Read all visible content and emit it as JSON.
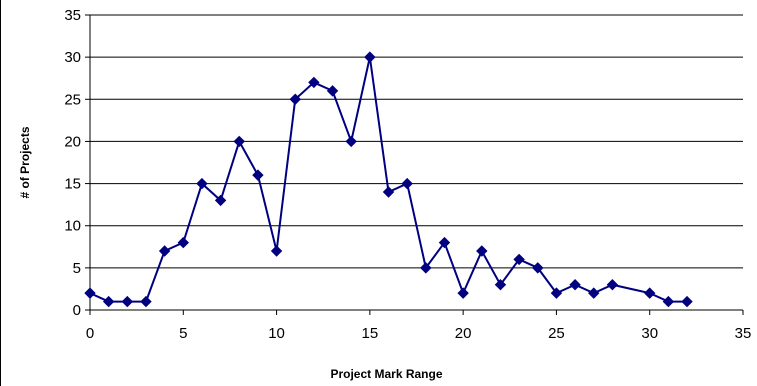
{
  "chart_data": {
    "type": "scatter",
    "title": "",
    "xlabel": "Project Mark Range",
    "ylabel": "# of Projects",
    "xlim": [
      0,
      35
    ],
    "ylim": [
      0,
      35
    ],
    "xticks": [
      0,
      5,
      10,
      15,
      20,
      25,
      30,
      35
    ],
    "yticks": [
      0,
      5,
      10,
      15,
      20,
      25,
      30,
      35
    ],
    "grid": "horizontal",
    "legend": "none",
    "series": [
      {
        "color": "#000080",
        "marker": "diamond",
        "lines": true,
        "x": [
          0,
          1,
          2,
          3,
          4,
          5,
          6,
          7,
          8,
          9,
          10,
          11,
          12,
          13,
          14,
          15,
          16,
          17,
          18,
          19,
          20,
          21,
          22,
          23,
          24,
          25,
          26,
          27,
          28,
          30,
          31,
          32
        ],
        "y": [
          2,
          1,
          1,
          1,
          7,
          8,
          15,
          13,
          20,
          16,
          7,
          25,
          27,
          26,
          20,
          30,
          14,
          15,
          5,
          8,
          2,
          7,
          3,
          6,
          5,
          2,
          3,
          2,
          3,
          2,
          1,
          1
        ]
      }
    ]
  }
}
